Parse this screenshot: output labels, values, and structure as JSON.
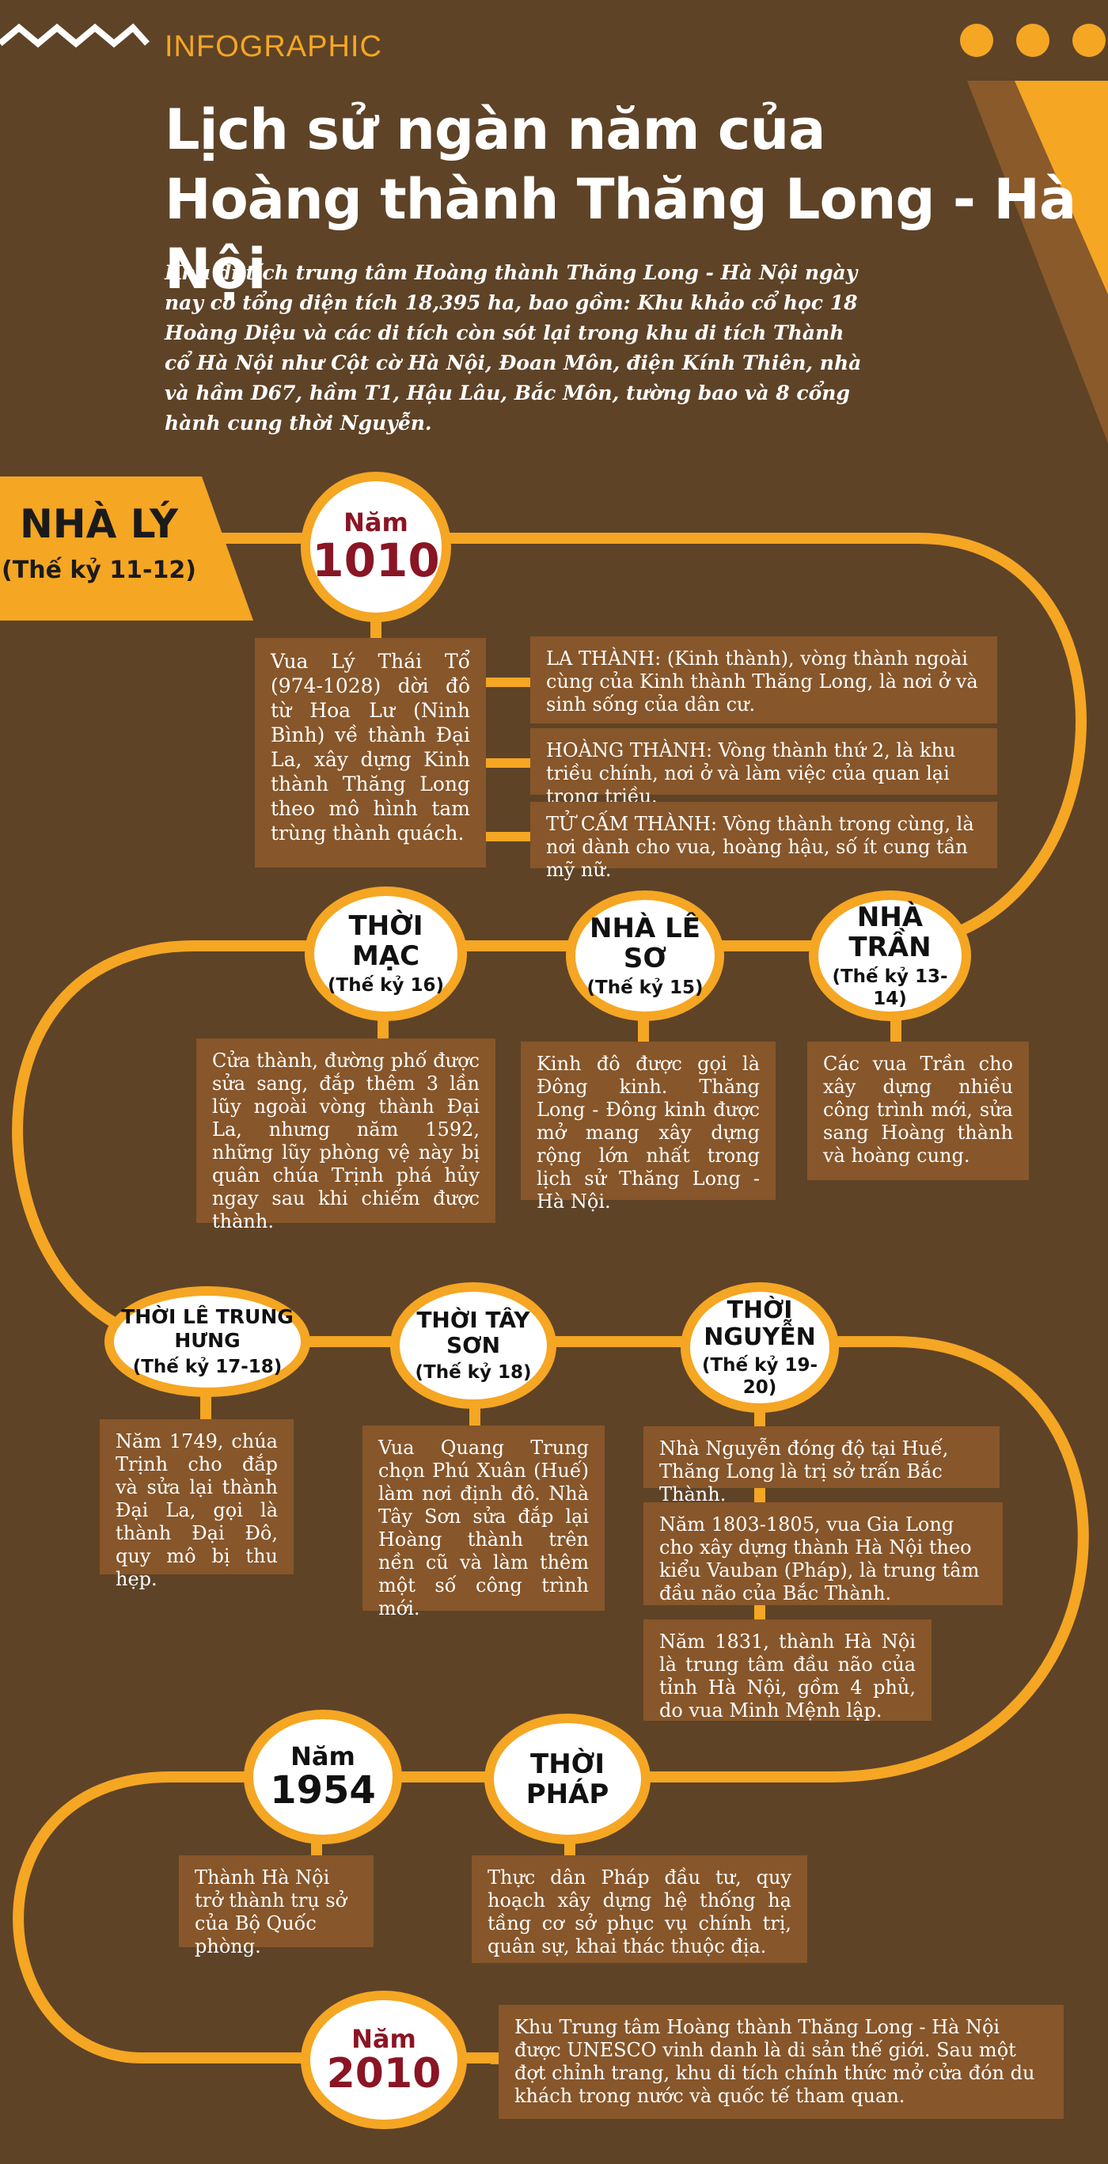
{
  "header": {
    "label": "INFOGRAPHIC",
    "title_line1": "Lịch sử ngàn năm của",
    "title_line2": "Hoàng thành Thăng Long - Hà Nội",
    "intro": "Khu di tích trung tâm Hoàng thành Thăng Long - Hà Nội ngày nay có tổng diện tích 18,395 ha, bao gồm: Khu khảo cổ học 18 Hoàng Diệu và các di tích còn sót lại trong khu di tích Thành cổ Hà Nội như Cột cờ Hà Nội, Đoan Môn, điện Kính Thiên, nhà và hầm D67, hầm T1, Hậu Lâu, Bắc Môn, tường bao và 8 cổng hành cung thời Nguyễn."
  },
  "colors": {
    "background": "#5e4327",
    "accent": "#f5a623",
    "box": "#87562a",
    "year_red": "#8a1524"
  },
  "ly": {
    "name": "NHÀ LÝ",
    "century": "(Thế kỷ 11-12)"
  },
  "nodes": {
    "y1010": {
      "small": "Năm",
      "big": "1010"
    },
    "mac": {
      "label": "THỜI MẠC",
      "sub": "(Thế kỷ 16)"
    },
    "leso": {
      "label": "NHÀ LÊ SƠ",
      "sub": "(Thế kỷ 15)"
    },
    "tran": {
      "label": "NHÀ TRẦN",
      "sub": "(Thế kỷ 13-14)"
    },
    "letrunghung": {
      "label": "THỜI LÊ TRUNG HƯNG",
      "sub": "(Thế kỷ 17-18)"
    },
    "tayson": {
      "label": "THỜI TÂY SƠN",
      "sub": "(Thế kỷ 18)"
    },
    "nguyen": {
      "label": "THỜI NGUYỄN",
      "sub": "(Thế kỷ 19-20)"
    },
    "y1954": {
      "small": "Năm",
      "big": "1954"
    },
    "phap": {
      "label": "THỜI PHÁP"
    },
    "y2010": {
      "small": "Năm",
      "big": "2010"
    }
  },
  "boxes": {
    "ly_main": "Vua Lý Thái Tổ (974-1028) dời đô từ Hoa Lư (Ninh Bình) về thành Đại La, xây dựng Kinh thành Thăng Long theo mô hình tam trùng thành quách.",
    "la_thanh": "LA THÀNH: (Kinh thành), vòng thành ngoài cùng của Kinh thành Thăng Long, là nơi ở và sinh sống của dân cư.",
    "hoang_thanh": "HOÀNG THÀNH: Vòng thành thứ 2, là khu triều chính, nơi ở và làm việc của quan lại trong triều.",
    "tu_cam_thanh": "TỬ CẤM THÀNH: Vòng thành trong cùng, là nơi dành cho vua, hoàng hậu, số ít cung tần mỹ nữ.",
    "mac": "Cửa thành, đường phố được sửa sang, đắp thêm 3 lần lũy ngoài vòng thành Đại La, nhưng năm 1592, những lũy phòng vệ này bị quân chúa Trịnh phá hủy ngay sau khi chiếm được thành.",
    "leso": "Kinh đô được gọi là Đông kinh. Thăng Long - Đông kinh được mở mang xây dựng rộng lớn nhất trong lịch sử Thăng Long - Hà Nội.",
    "tran": "Các vua Trần cho xây dựng nhiều công trình mới, sửa sang Hoàng thành và hoàng cung.",
    "letrunghung": "Năm 1749, chúa Trịnh cho đắp và sửa lại thành Đại La, gọi là thành Đại Đô, quy mô bị thu hẹp.",
    "tayson": "Vua Quang Trung chọn Phú Xuân (Huế) làm nơi định đô. Nhà Tây Sơn sửa đắp lại Hoàng thành trên nền cũ và làm thêm một số công trình mới.",
    "nguyen1": "Nhà Nguyễn đóng độ tại Huế, Thăng Long là trị sở trấn Bắc Thành.",
    "nguyen2": "Năm 1803-1805, vua Gia Long cho xây dựng thành Hà Nội theo kiểu Vauban (Pháp), là trung tâm đầu não của Bắc Thành.",
    "nguyen3": "Năm 1831, thành Hà Nội là trung tâm đầu não của tỉnh Hà Nội, gồm 4 phủ, do vua Minh Mệnh lập.",
    "y1954": "Thành Hà Nội trở thành trụ sở của Bộ Quốc phòng.",
    "phap": "Thực dân Pháp đầu tư, quy hoạch xây dựng hệ thống hạ tầng cơ sở phục vụ chính trị, quân sự, khai thác thuộc địa.",
    "y2010": "Khu Trung tâm Hoàng thành Thăng Long - Hà Nội được UNESCO vinh danh là di sản thế giới. Sau một đợt chỉnh trang, khu di tích chính thức mở cửa đón du khách trong nước và quốc tế tham quan."
  }
}
